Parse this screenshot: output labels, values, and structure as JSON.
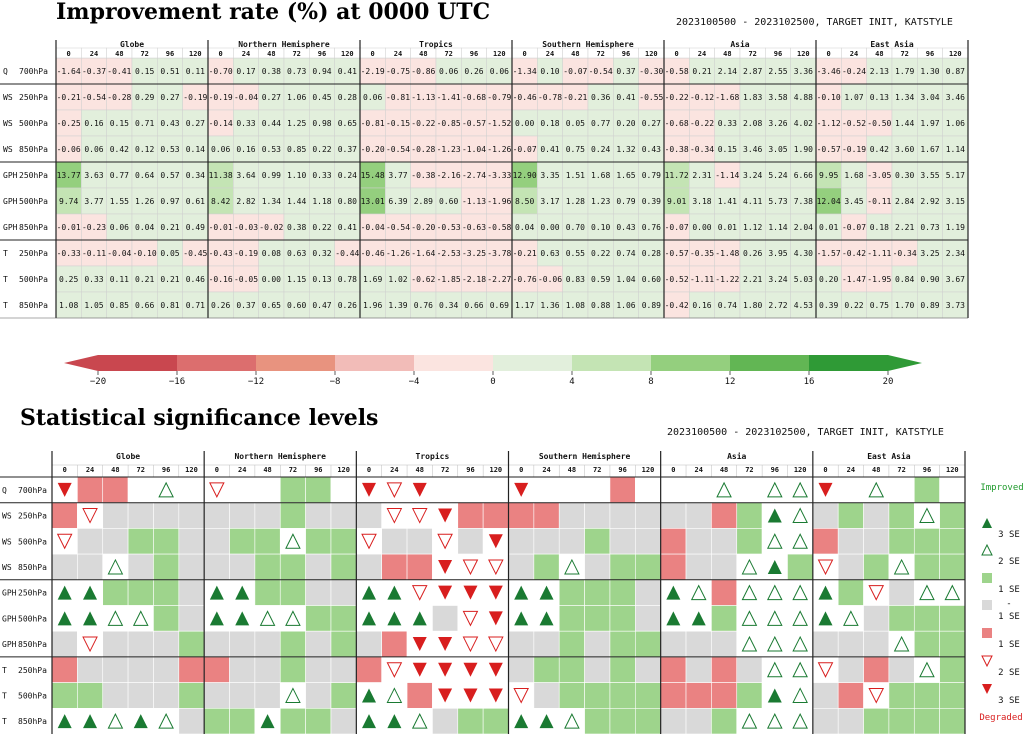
{
  "titles": {
    "improvement": "Improvement rate (%) at 0000 UTC",
    "significance": "Statistical significance levels",
    "subtitle_top": "2023100500 - 2023102500, TARGET INIT, KATSTYLE",
    "subtitle_bottom": "2023100500 - 2023102500, TARGET INIT, KATSTYLE"
  },
  "chart_data": [
    {
      "type": "heatmap",
      "title": "Improvement rate (%) at 0000 UTC",
      "regions": [
        "Globe",
        "Northern Hemisphere",
        "Tropics",
        "Southern Hemisphere",
        "Asia",
        "East Asia"
      ],
      "lead_times": [
        "0",
        "24",
        "48",
        "72",
        "96",
        "120"
      ],
      "rows": [
        {
          "var": "Q",
          "level": "700hPa",
          "values": [
            -1.64,
            -0.37,
            -0.41,
            0.15,
            0.51,
            0.11,
            -0.7,
            0.17,
            0.38,
            0.73,
            0.94,
            0.41,
            -2.19,
            -0.75,
            -0.86,
            0.06,
            0.26,
            0.06,
            -1.34,
            0.1,
            -0.07,
            -0.54,
            0.37,
            -0.3,
            -0.58,
            0.21,
            2.14,
            2.87,
            2.55,
            3.36,
            -3.46,
            -0.24,
            2.13,
            1.79,
            1.3,
            0.87
          ]
        },
        {
          "var": "WS",
          "level": "250hPa",
          "values": [
            -0.21,
            -0.54,
            -0.28,
            0.29,
            0.27,
            -0.19,
            -0.19,
            -0.04,
            0.27,
            1.06,
            0.45,
            0.28,
            0.06,
            -0.81,
            -1.13,
            -1.41,
            -0.68,
            -0.79,
            -0.46,
            -0.78,
            -0.21,
            0.36,
            0.41,
            -0.55,
            -0.22,
            -0.12,
            -1.68,
            1.83,
            3.58,
            4.88,
            -0.1,
            1.07,
            0.13,
            1.34,
            3.04,
            3.46
          ]
        },
        {
          "var": "WS",
          "level": "500hPa",
          "values": [
            -0.25,
            0.16,
            0.15,
            0.71,
            0.43,
            0.27,
            -0.14,
            0.33,
            0.44,
            1.25,
            0.98,
            0.65,
            -0.81,
            -0.15,
            -0.22,
            -0.85,
            -0.57,
            -1.52,
            0.0,
            0.18,
            0.05,
            0.77,
            0.2,
            0.27,
            -0.68,
            -0.22,
            0.33,
            2.08,
            3.26,
            4.02,
            -1.12,
            -0.52,
            -0.5,
            1.44,
            1.97,
            1.06
          ]
        },
        {
          "var": "WS",
          "level": "850hPa",
          "values": [
            -0.06,
            0.06,
            0.42,
            0.12,
            0.53,
            0.14,
            0.06,
            0.16,
            0.53,
            0.85,
            0.22,
            0.37,
            -0.2,
            -0.54,
            -0.28,
            -1.23,
            -1.04,
            -1.26,
            -0.07,
            0.41,
            0.75,
            0.24,
            1.32,
            0.43,
            -0.38,
            -0.34,
            0.15,
            3.46,
            3.05,
            1.9,
            -0.57,
            -0.19,
            0.42,
            3.6,
            1.67,
            1.14
          ]
        },
        {
          "var": "GPH",
          "level": "250hPa",
          "values": [
            13.77,
            3.63,
            0.77,
            0.64,
            0.57,
            0.34,
            11.38,
            3.64,
            0.99,
            1.1,
            0.33,
            0.24,
            15.48,
            3.77,
            -0.38,
            -2.16,
            -2.74,
            -3.33,
            12.9,
            3.35,
            1.51,
            1.68,
            1.65,
            0.79,
            11.72,
            2.31,
            -1.14,
            3.24,
            5.24,
            6.66,
            9.95,
            1.68,
            -3.05,
            0.3,
            3.55,
            5.17
          ]
        },
        {
          "var": "GPH",
          "level": "500hPa",
          "values": [
            9.74,
            3.77,
            1.55,
            1.26,
            0.97,
            0.61,
            8.42,
            2.82,
            1.34,
            1.44,
            1.18,
            0.8,
            13.01,
            6.39,
            2.89,
            0.6,
            -1.13,
            -1.96,
            8.5,
            3.17,
            1.28,
            1.23,
            0.79,
            0.39,
            9.01,
            3.18,
            1.41,
            4.11,
            5.73,
            7.38,
            12.04,
            3.45,
            -0.11,
            2.84,
            2.92,
            3.15
          ]
        },
        {
          "var": "GPH",
          "level": "850hPa",
          "values": [
            -0.01,
            -0.23,
            0.06,
            0.04,
            0.21,
            0.49,
            -0.01,
            -0.03,
            -0.02,
            0.38,
            0.22,
            0.41,
            -0.04,
            -0.54,
            -0.2,
            -0.53,
            -0.63,
            -0.58,
            0.04,
            -0.0,
            0.7,
            0.1,
            0.43,
            0.76,
            -0.07,
            -0.0,
            0.01,
            1.12,
            1.14,
            2.04,
            0.01,
            -0.07,
            0.18,
            2.21,
            0.73,
            1.19
          ]
        },
        {
          "var": "T",
          "level": "250hPa",
          "values": [
            -0.33,
            -0.11,
            -0.04,
            -0.1,
            0.05,
            -0.45,
            -0.43,
            -0.19,
            0.08,
            0.63,
            0.32,
            -0.44,
            -0.46,
            -1.26,
            -1.64,
            -2.53,
            -3.25,
            -3.78,
            -0.21,
            0.63,
            0.55,
            0.22,
            0.74,
            0.28,
            -0.57,
            -0.35,
            -1.48,
            0.26,
            3.95,
            4.3,
            -1.57,
            -0.42,
            -1.11,
            -0.34,
            3.25,
            2.34
          ]
        },
        {
          "var": "T",
          "level": "500hPa",
          "values": [
            0.25,
            0.33,
            0.11,
            0.21,
            0.21,
            0.46,
            -0.16,
            -0.05,
            0.0,
            1.15,
            0.13,
            0.78,
            1.69,
            1.02,
            -0.62,
            -1.85,
            -2.18,
            -2.27,
            -0.76,
            -0.06,
            0.83,
            0.59,
            1.04,
            0.6,
            -0.52,
            -1.11,
            -1.22,
            2.21,
            3.24,
            5.03,
            0.2,
            -1.47,
            -1.95,
            0.84,
            0.9,
            3.67
          ]
        },
        {
          "var": "T",
          "level": "850hPa",
          "values": [
            1.08,
            1.05,
            0.85,
            0.66,
            0.81,
            0.71,
            0.26,
            0.37,
            0.65,
            0.6,
            0.47,
            0.26,
            1.96,
            1.39,
            0.76,
            0.34,
            0.66,
            0.69,
            1.17,
            1.36,
            1.08,
            0.88,
            1.06,
            0.89,
            -0.42,
            0.16,
            0.74,
            1.8,
            2.72,
            4.53,
            0.39,
            0.22,
            0.75,
            1.7,
            0.89,
            3.73
          ]
        }
      ],
      "colorbar": {
        "ticks": [
          -20,
          -16,
          -12,
          -8,
          -4,
          0,
          4,
          8,
          12,
          16,
          20
        ],
        "colors": [
          "#c9474f",
          "#dc6e6e",
          "#e8937f",
          "#f2bcb8",
          "#fbe4e0",
          "#f7f4ee",
          "#e2efdc",
          "#c4e4b4",
          "#94cf7e",
          "#62b654",
          "#2f9a36"
        ]
      }
    },
    {
      "type": "table",
      "title": "Statistical significance levels",
      "regions": [
        "Globe",
        "Northern Hemisphere",
        "Tropics",
        "Southern Hemisphere",
        "Asia",
        "East Asia"
      ],
      "lead_times": [
        "0",
        "24",
        "48",
        "72",
        "96",
        "120"
      ],
      "codes": "3=improved 3 SE (filled green up triangle), 2=improved 2 SE (open green up triangle), 1=improved 1 SE (green fill), 0=within 1 SE (grey), -1=degraded 1 SE (red fill), -2=degraded 2 SE (open red down triangle), -3=degraded 3 SE (filled red down triangle), null=white",
      "rows": [
        {
          "var": "Q",
          "level": "700hPa",
          "values": [
            -3,
            -1,
            -1,
            null,
            2,
            null,
            -2,
            null,
            null,
            1,
            1,
            null,
            -3,
            -2,
            -3,
            null,
            null,
            null,
            -3,
            null,
            null,
            null,
            -1,
            null,
            null,
            null,
            2,
            null,
            2,
            2,
            -3,
            null,
            2,
            null,
            1,
            null
          ]
        },
        {
          "var": "WS",
          "level": "250hPa",
          "values": [
            -1,
            -2,
            0,
            0,
            0,
            0,
            0,
            0,
            0,
            1,
            0,
            0,
            0,
            -2,
            -2,
            -3,
            -1,
            -1,
            -1,
            -1,
            0,
            0,
            0,
            0,
            0,
            0,
            -1,
            1,
            3,
            2,
            0,
            1,
            0,
            1,
            2,
            1
          ]
        },
        {
          "var": "WS",
          "level": "500hPa",
          "values": [
            -2,
            0,
            0,
            1,
            1,
            0,
            0,
            1,
            1,
            2,
            1,
            1,
            -2,
            0,
            0,
            -2,
            0,
            -3,
            0,
            0,
            0,
            1,
            0,
            0,
            -1,
            0,
            0,
            1,
            2,
            2,
            -1,
            0,
            0,
            1,
            1,
            1
          ]
        },
        {
          "var": "WS",
          "level": "850hPa",
          "values": [
            0,
            0,
            2,
            0,
            1,
            0,
            0,
            0,
            1,
            1,
            0,
            1,
            0,
            -1,
            -1,
            -3,
            -2,
            -2,
            0,
            1,
            2,
            0,
            1,
            1,
            -1,
            0,
            0,
            2,
            3,
            1,
            -2,
            0,
            1,
            2,
            1,
            1
          ]
        },
        {
          "var": "GPH",
          "level": "250hPa",
          "values": [
            3,
            3,
            1,
            1,
            1,
            0,
            3,
            3,
            1,
            1,
            0,
            0,
            3,
            3,
            -2,
            -3,
            -3,
            -3,
            3,
            3,
            1,
            1,
            1,
            0,
            3,
            2,
            -1,
            2,
            2,
            2,
            3,
            1,
            -2,
            0,
            2,
            2
          ]
        },
        {
          "var": "GPH",
          "level": "500hPa",
          "values": [
            3,
            3,
            2,
            2,
            1,
            0,
            3,
            3,
            2,
            2,
            1,
            1,
            3,
            3,
            3,
            0,
            -2,
            -3,
            3,
            3,
            1,
            1,
            1,
            0,
            3,
            3,
            1,
            2,
            2,
            2,
            3,
            2,
            0,
            1,
            1,
            1
          ]
        },
        {
          "var": "GPH",
          "level": "850hPa",
          "values": [
            0,
            -2,
            0,
            0,
            0,
            1,
            0,
            0,
            0,
            1,
            0,
            1,
            0,
            -1,
            -3,
            -3,
            -2,
            -2,
            0,
            0,
            1,
            0,
            1,
            1,
            0,
            0,
            0,
            2,
            2,
            2,
            0,
            0,
            0,
            2,
            1,
            1
          ]
        },
        {
          "var": "T",
          "level": "250hPa",
          "values": [
            -1,
            0,
            0,
            0,
            0,
            -1,
            -1,
            0,
            0,
            1,
            0,
            0,
            -1,
            -2,
            -3,
            -3,
            -3,
            -3,
            0,
            1,
            1,
            0,
            1,
            0,
            -1,
            0,
            -1,
            0,
            2,
            2,
            -2,
            0,
            -1,
            0,
            2,
            1
          ]
        },
        {
          "var": "T",
          "level": "500hPa",
          "values": [
            1,
            1,
            0,
            0,
            0,
            1,
            0,
            0,
            0,
            2,
            0,
            1,
            3,
            2,
            -1,
            -3,
            -3,
            -3,
            -2,
            0,
            1,
            1,
            1,
            1,
            -1,
            -1,
            -1,
            1,
            3,
            2,
            0,
            -1,
            -2,
            1,
            1,
            1
          ]
        },
        {
          "var": "T",
          "level": "850hPa",
          "values": [
            3,
            3,
            2,
            3,
            2,
            0,
            1,
            1,
            3,
            1,
            1,
            0,
            3,
            3,
            2,
            0,
            1,
            1,
            3,
            3,
            2,
            1,
            1,
            1,
            0,
            0,
            1,
            2,
            2,
            2,
            0,
            0,
            1,
            1,
            1,
            1
          ]
        }
      ],
      "legend": {
        "improved": "Improved",
        "degraded": "Degraded",
        "dash": "-",
        "items": [
          {
            "marker": "filled-up",
            "label": "3 SE"
          },
          {
            "marker": "open-up",
            "label": "2 SE"
          },
          {
            "marker": "green-box",
            "label": "1 SE"
          },
          {
            "marker": "grey-box",
            "label": "1 SE"
          },
          {
            "marker": "red-box",
            "label": "1 SE"
          },
          {
            "marker": "open-down",
            "label": "2 SE"
          },
          {
            "marker": "filled-down",
            "label": "3 SE"
          }
        ]
      }
    }
  ],
  "colors": {
    "improve_strong": "#1a7a32",
    "improve_fill": "#9ed48c",
    "neutral": "#d9d9d9",
    "degrade_fill": "#ea8282",
    "degrade_strong": "#d81e1e",
    "improved_text": "#1f9a2c",
    "degraded_text": "#d81e1e"
  }
}
